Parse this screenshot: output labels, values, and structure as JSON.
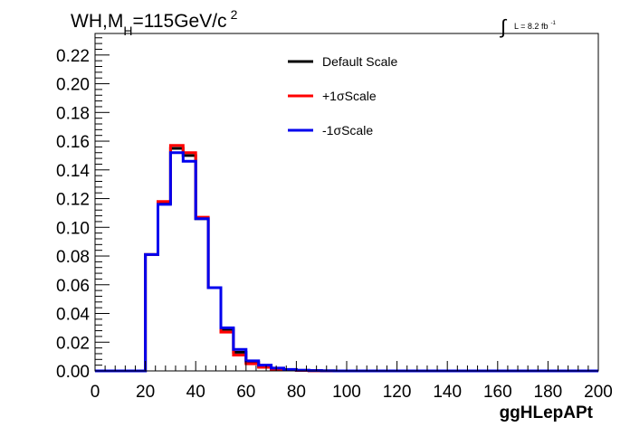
{
  "chart_data": {
    "type": "line",
    "title": {
      "prefix": "WH,M",
      "subscript": "H",
      "value": "=115GeV/c",
      "superscript": "2"
    },
    "luminosity": {
      "symbol": "∫",
      "text": "L = 8.2 fb",
      "superscript": "-1"
    },
    "xlabel": "ggHLepAPt",
    "ylabel": "",
    "xlim": [
      0,
      200
    ],
    "ylim": [
      0,
      0.235
    ],
    "x_ticks": [
      0,
      20,
      40,
      60,
      80,
      100,
      120,
      140,
      160,
      180,
      200
    ],
    "x_tick_labels": [
      "0",
      "20",
      "40",
      "60",
      "80",
      "100",
      "120",
      "140",
      "160",
      "180",
      "200"
    ],
    "y_ticks": [
      0,
      0.02,
      0.04,
      0.06,
      0.08,
      0.1,
      0.12,
      0.14,
      0.16,
      0.18,
      0.2,
      0.22
    ],
    "y_tick_labels": [
      "0.00",
      "0.02",
      "0.04",
      "0.06",
      "0.08",
      "0.10",
      "0.12",
      "0.14",
      "0.16",
      "0.18",
      "0.20",
      "0.22"
    ],
    "bin_edges": [
      0,
      5,
      10,
      15,
      20,
      25,
      30,
      35,
      40,
      45,
      50,
      55,
      60,
      65,
      70,
      75,
      80,
      85,
      90,
      95,
      100,
      105,
      110,
      115,
      120,
      125,
      130,
      135,
      140,
      145,
      150,
      155,
      160,
      165,
      170,
      175,
      180,
      185,
      190,
      195,
      200
    ],
    "legend_position": "top-center",
    "grid": false,
    "series": [
      {
        "name": "Default Scale",
        "color": "#000000",
        "values": [
          0,
          0,
          0,
          0,
          0.081,
          0.117,
          0.155,
          0.15,
          0.106,
          0.058,
          0.029,
          0.013,
          0.006,
          0.003,
          0.0015,
          0.0008,
          0.0004,
          0.0002,
          0.0001,
          0,
          0,
          0,
          0,
          0,
          0,
          0,
          0,
          0,
          0,
          0,
          0,
          0,
          0,
          0,
          0,
          0,
          0,
          0,
          0,
          0
        ]
      },
      {
        "name": "+1σScale",
        "color": "#ff0000",
        "values": [
          0,
          0,
          0,
          0,
          0.081,
          0.118,
          0.157,
          0.152,
          0.107,
          0.058,
          0.027,
          0.011,
          0.005,
          0.0025,
          0.0012,
          0.0006,
          0.0003,
          0.0001,
          0,
          0,
          0,
          0,
          0,
          0,
          0,
          0,
          0,
          0,
          0,
          0,
          0,
          0,
          0,
          0,
          0,
          0,
          0,
          0,
          0,
          0
        ]
      },
      {
        "name": "-1σScale",
        "color": "#0000ee",
        "values": [
          0,
          0,
          0,
          0,
          0.081,
          0.116,
          0.152,
          0.146,
          0.106,
          0.058,
          0.03,
          0.015,
          0.007,
          0.004,
          0.002,
          0.001,
          0.0005,
          0.0002,
          0.0001,
          0,
          0,
          0,
          0,
          0,
          0,
          0,
          0,
          0,
          0,
          0,
          0,
          0,
          0,
          0,
          0,
          0,
          0,
          0,
          0,
          0
        ]
      }
    ]
  }
}
